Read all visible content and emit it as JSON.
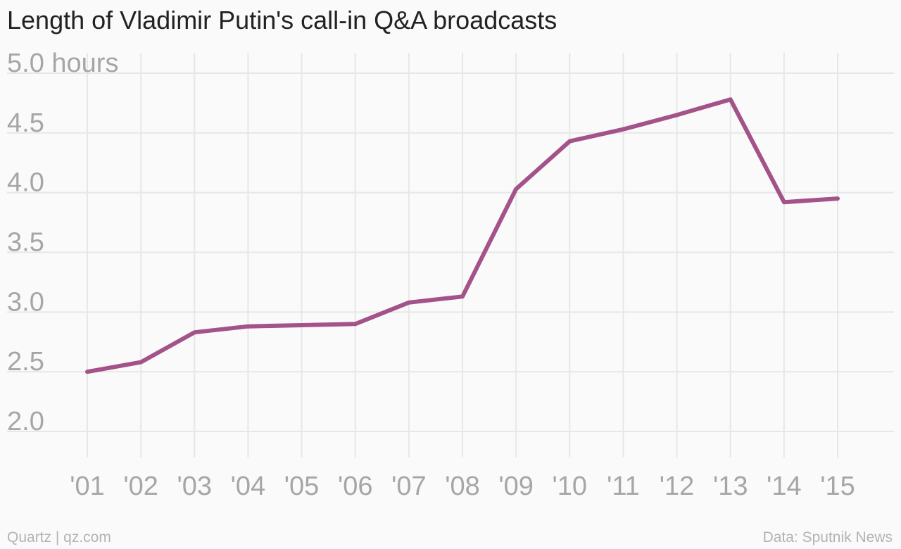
{
  "title": "Length of Vladimir Putin's call-in Q&A broadcasts",
  "footer": {
    "source_left": "Quartz | qz.com",
    "source_right": "Data: Sputnik News"
  },
  "colors": {
    "line": "#a3538a",
    "grid": "#e7e7e7",
    "tick_text": "#a6a6a6",
    "background": "#fafafa"
  },
  "chart_data": {
    "type": "line",
    "title": "Length of Vladimir Putin's call-in Q&A broadcasts",
    "categories": [
      "'01",
      "'02",
      "'03",
      "'04",
      "'05",
      "'06",
      "'07",
      "'08",
      "'09",
      "'10",
      "'11",
      "'12",
      "'13",
      "'14",
      "'15"
    ],
    "x": [
      2001,
      2002,
      2003,
      2004,
      2005,
      2006,
      2007,
      2008,
      2009,
      2010,
      2011,
      2012,
      2013,
      2014,
      2015
    ],
    "series": [
      {
        "values": [
          2.5,
          2.58,
          2.83,
          2.88,
          2.89,
          2.9,
          3.08,
          3.13,
          4.03,
          4.43,
          4.53,
          4.65,
          4.78,
          3.92,
          3.95
        ],
        "color": "#a3538a"
      }
    ],
    "xlabel": "",
    "ylabel": "",
    "ylim": [
      2.0,
      5.0
    ],
    "yticks": [
      2.0,
      2.5,
      3.0,
      3.5,
      4.0,
      4.5,
      5.0
    ],
    "ytick_labels": [
      "2.0",
      "2.5",
      "3.0",
      "3.5",
      "4.0",
      "4.5",
      "5.0 hours"
    ],
    "grid": true,
    "legend": "none"
  }
}
